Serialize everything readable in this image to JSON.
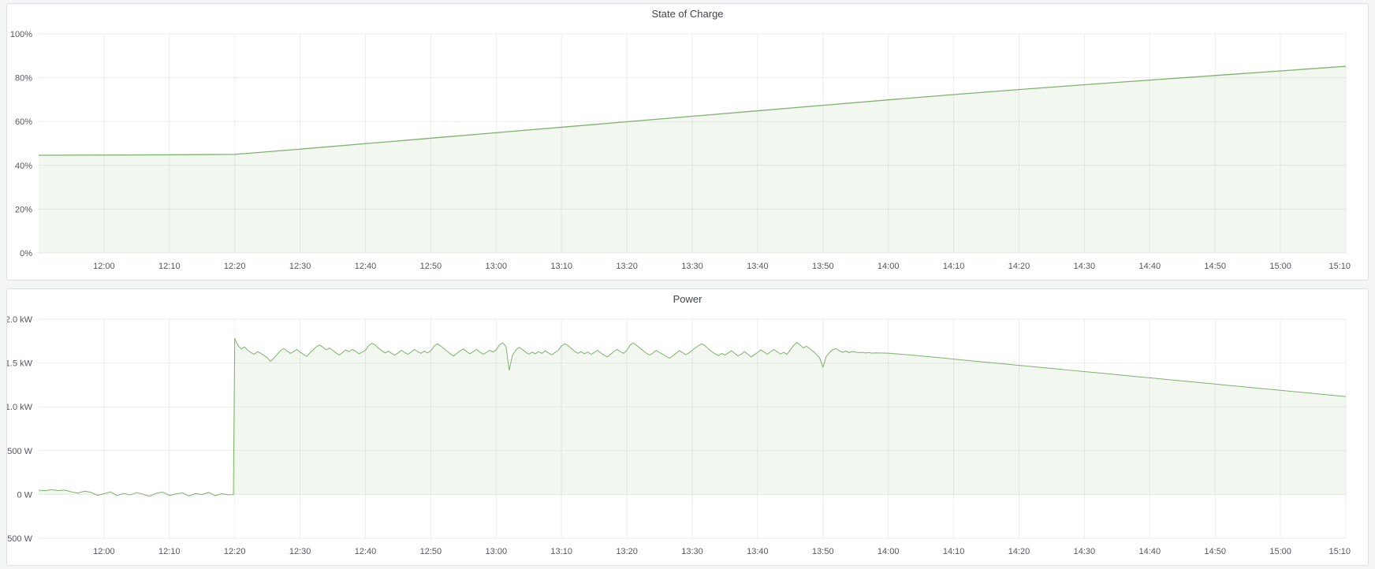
{
  "panels": [
    {
      "title": "State of Charge"
    },
    {
      "title": "Power"
    }
  ],
  "colors": {
    "series_green": "#7eb26d",
    "series_fill": "rgba(126,178,109,0.1)",
    "grid": "rgba(0,0,0,0.07)",
    "tick_text": "#54575e",
    "panel_border": "#dde0e2",
    "page_background": "#f4f5f5"
  },
  "chart_data": [
    {
      "type": "area",
      "title": "State of Charge",
      "xlabel": "",
      "ylabel": "",
      "x_domain_minutes": [
        0,
        200
      ],
      "ylim": [
        0,
        100
      ],
      "grid": true,
      "legend": "none",
      "line_color": "#7eb26d",
      "fill_color": "rgba(126,178,109,0.1)",
      "line_width": 1.3,
      "fill_baseline_value": 0,
      "x_ticks": {
        "first_minute": 10,
        "step_minutes": 10,
        "labels": [
          "12:00",
          "12:10",
          "12:20",
          "12:30",
          "12:40",
          "12:50",
          "13:00",
          "13:10",
          "13:20",
          "13:30",
          "13:40",
          "13:50",
          "14:00",
          "14:10",
          "14:20",
          "14:30",
          "14:40",
          "14:50",
          "15:00",
          "15:10"
        ]
      },
      "y_ticks": [
        {
          "value": 0,
          "label": "0%"
        },
        {
          "value": 20,
          "label": "20%"
        },
        {
          "value": 40,
          "label": "40%"
        },
        {
          "value": 60,
          "label": "60%"
        },
        {
          "value": 80,
          "label": "80%"
        },
        {
          "value": 100,
          "label": "100%"
        }
      ],
      "series_unit": "percent",
      "segments": [
        {
          "t0": 0,
          "dt": 10,
          "values": [
            44.6,
            44.7,
            44.8,
            45.0,
            47.4,
            49.9,
            52.4,
            54.9,
            57.4,
            59.9,
            62.4,
            64.9,
            67.4,
            69.9,
            72.3,
            74.6,
            76.8,
            78.9,
            81.0,
            83.1,
            85.2
          ]
        }
      ]
    },
    {
      "type": "area",
      "title": "Power",
      "xlabel": "",
      "ylabel": "",
      "x_domain_minutes": [
        0,
        200
      ],
      "ylim": [
        -500,
        2000
      ],
      "grid": true,
      "legend": "none",
      "line_color": "#7eb26d",
      "fill_color": "rgba(126,178,109,0.1)",
      "line_width": 1,
      "fill_baseline_value": 0,
      "x_ticks": {
        "first_minute": 10,
        "step_minutes": 10,
        "labels": [
          "12:00",
          "12:10",
          "12:20",
          "12:30",
          "12:40",
          "12:50",
          "13:00",
          "13:10",
          "13:20",
          "13:30",
          "13:40",
          "13:50",
          "14:00",
          "14:10",
          "14:20",
          "14:30",
          "14:40",
          "14:50",
          "15:00",
          "15:10"
        ]
      },
      "y_ticks": [
        {
          "value": -500,
          "label": "-500 W"
        },
        {
          "value": 0,
          "label": "0 W"
        },
        {
          "value": 500,
          "label": "500 W"
        },
        {
          "value": 1000,
          "label": "1.0 kW"
        },
        {
          "value": 1500,
          "label": "1.5 kW"
        },
        {
          "value": 2000,
          "label": "2.0 kW"
        }
      ],
      "series_unit": "watts",
      "segments": [
        {
          "t0": 0,
          "dt": 1,
          "values": [
            48,
            42,
            55,
            44,
            50,
            30,
            16,
            38,
            24,
            -10,
            8,
            30,
            -14,
            12,
            -6,
            22,
            2,
            -22,
            14,
            28,
            -12,
            6,
            18,
            -18,
            10,
            -2,
            24,
            -14,
            8,
            -4
          ]
        },
        {
          "t0": 29.8,
          "dt": 1,
          "values": [
            -2
          ]
        },
        {
          "t0": 30,
          "dt": 0.5,
          "values": [
            1780,
            1700,
            1660,
            1685,
            1645,
            1620,
            1600,
            1630,
            1610,
            1585,
            1560,
            1520,
            1555,
            1600,
            1640,
            1665,
            1640,
            1610,
            1630,
            1655,
            1625,
            1600,
            1575,
            1615,
            1650,
            1685,
            1705,
            1680,
            1650,
            1670,
            1645,
            1615,
            1590,
            1620,
            1650,
            1630,
            1655,
            1635,
            1605,
            1625,
            1645,
            1700,
            1725,
            1705,
            1670,
            1640,
            1615,
            1635,
            1610,
            1590,
            1615,
            1645,
            1620,
            1600,
            1625,
            1655,
            1630,
            1610,
            1635,
            1615,
            1640,
            1690,
            1720,
            1695,
            1665,
            1635,
            1605,
            1580,
            1610,
            1640,
            1660,
            1630,
            1605,
            1630,
            1655,
            1625,
            1600,
            1620,
            1645,
            1625,
            1650,
            1705,
            1730,
            1690,
            1420,
            1590,
            1645,
            1680,
            1655,
            1625,
            1600,
            1625,
            1605,
            1630,
            1610,
            1640,
            1615,
            1595,
            1620,
            1645,
            1695,
            1720,
            1700,
            1665,
            1635,
            1610,
            1630,
            1605,
            1625,
            1600,
            1620,
            1645,
            1615,
            1590,
            1570,
            1600,
            1630,
            1655,
            1630,
            1610,
            1645,
            1705,
            1730,
            1700,
            1670,
            1640,
            1610,
            1590,
            1615,
            1645,
            1620,
            1600,
            1575,
            1555,
            1580,
            1610,
            1640,
            1620,
            1595,
            1615,
            1645,
            1675,
            1700,
            1720,
            1695,
            1660,
            1630,
            1605,
            1585,
            1610,
            1590,
            1615,
            1640,
            1610,
            1580,
            1600,
            1630,
            1600,
            1570,
            1595,
            1620,
            1650,
            1625,
            1600,
            1630,
            1655,
            1628,
            1602,
            1622,
            1598,
            1650,
            1700,
            1735,
            1705,
            1672,
            1692,
            1662,
            1632,
            1600,
            1560,
            1450,
            1575,
            1620,
            1652,
            1665,
            1640,
            1622,
            1636,
            1620,
            1630,
            1624,
            1618,
            1622,
            1614,
            1620,
            1612
          ]
        },
        {
          "t0": 128,
          "dt": 2,
          "values": [
            1616,
            1612,
            1600,
            1587,
            1573,
            1559,
            1545,
            1530,
            1516,
            1502,
            1488,
            1473,
            1459,
            1445,
            1431,
            1416,
            1402,
            1388,
            1374,
            1359,
            1345,
            1331,
            1317,
            1302,
            1288,
            1274,
            1260,
            1245,
            1231,
            1217,
            1203,
            1188,
            1174,
            1160,
            1146,
            1131,
            1117
          ]
        }
      ]
    }
  ]
}
